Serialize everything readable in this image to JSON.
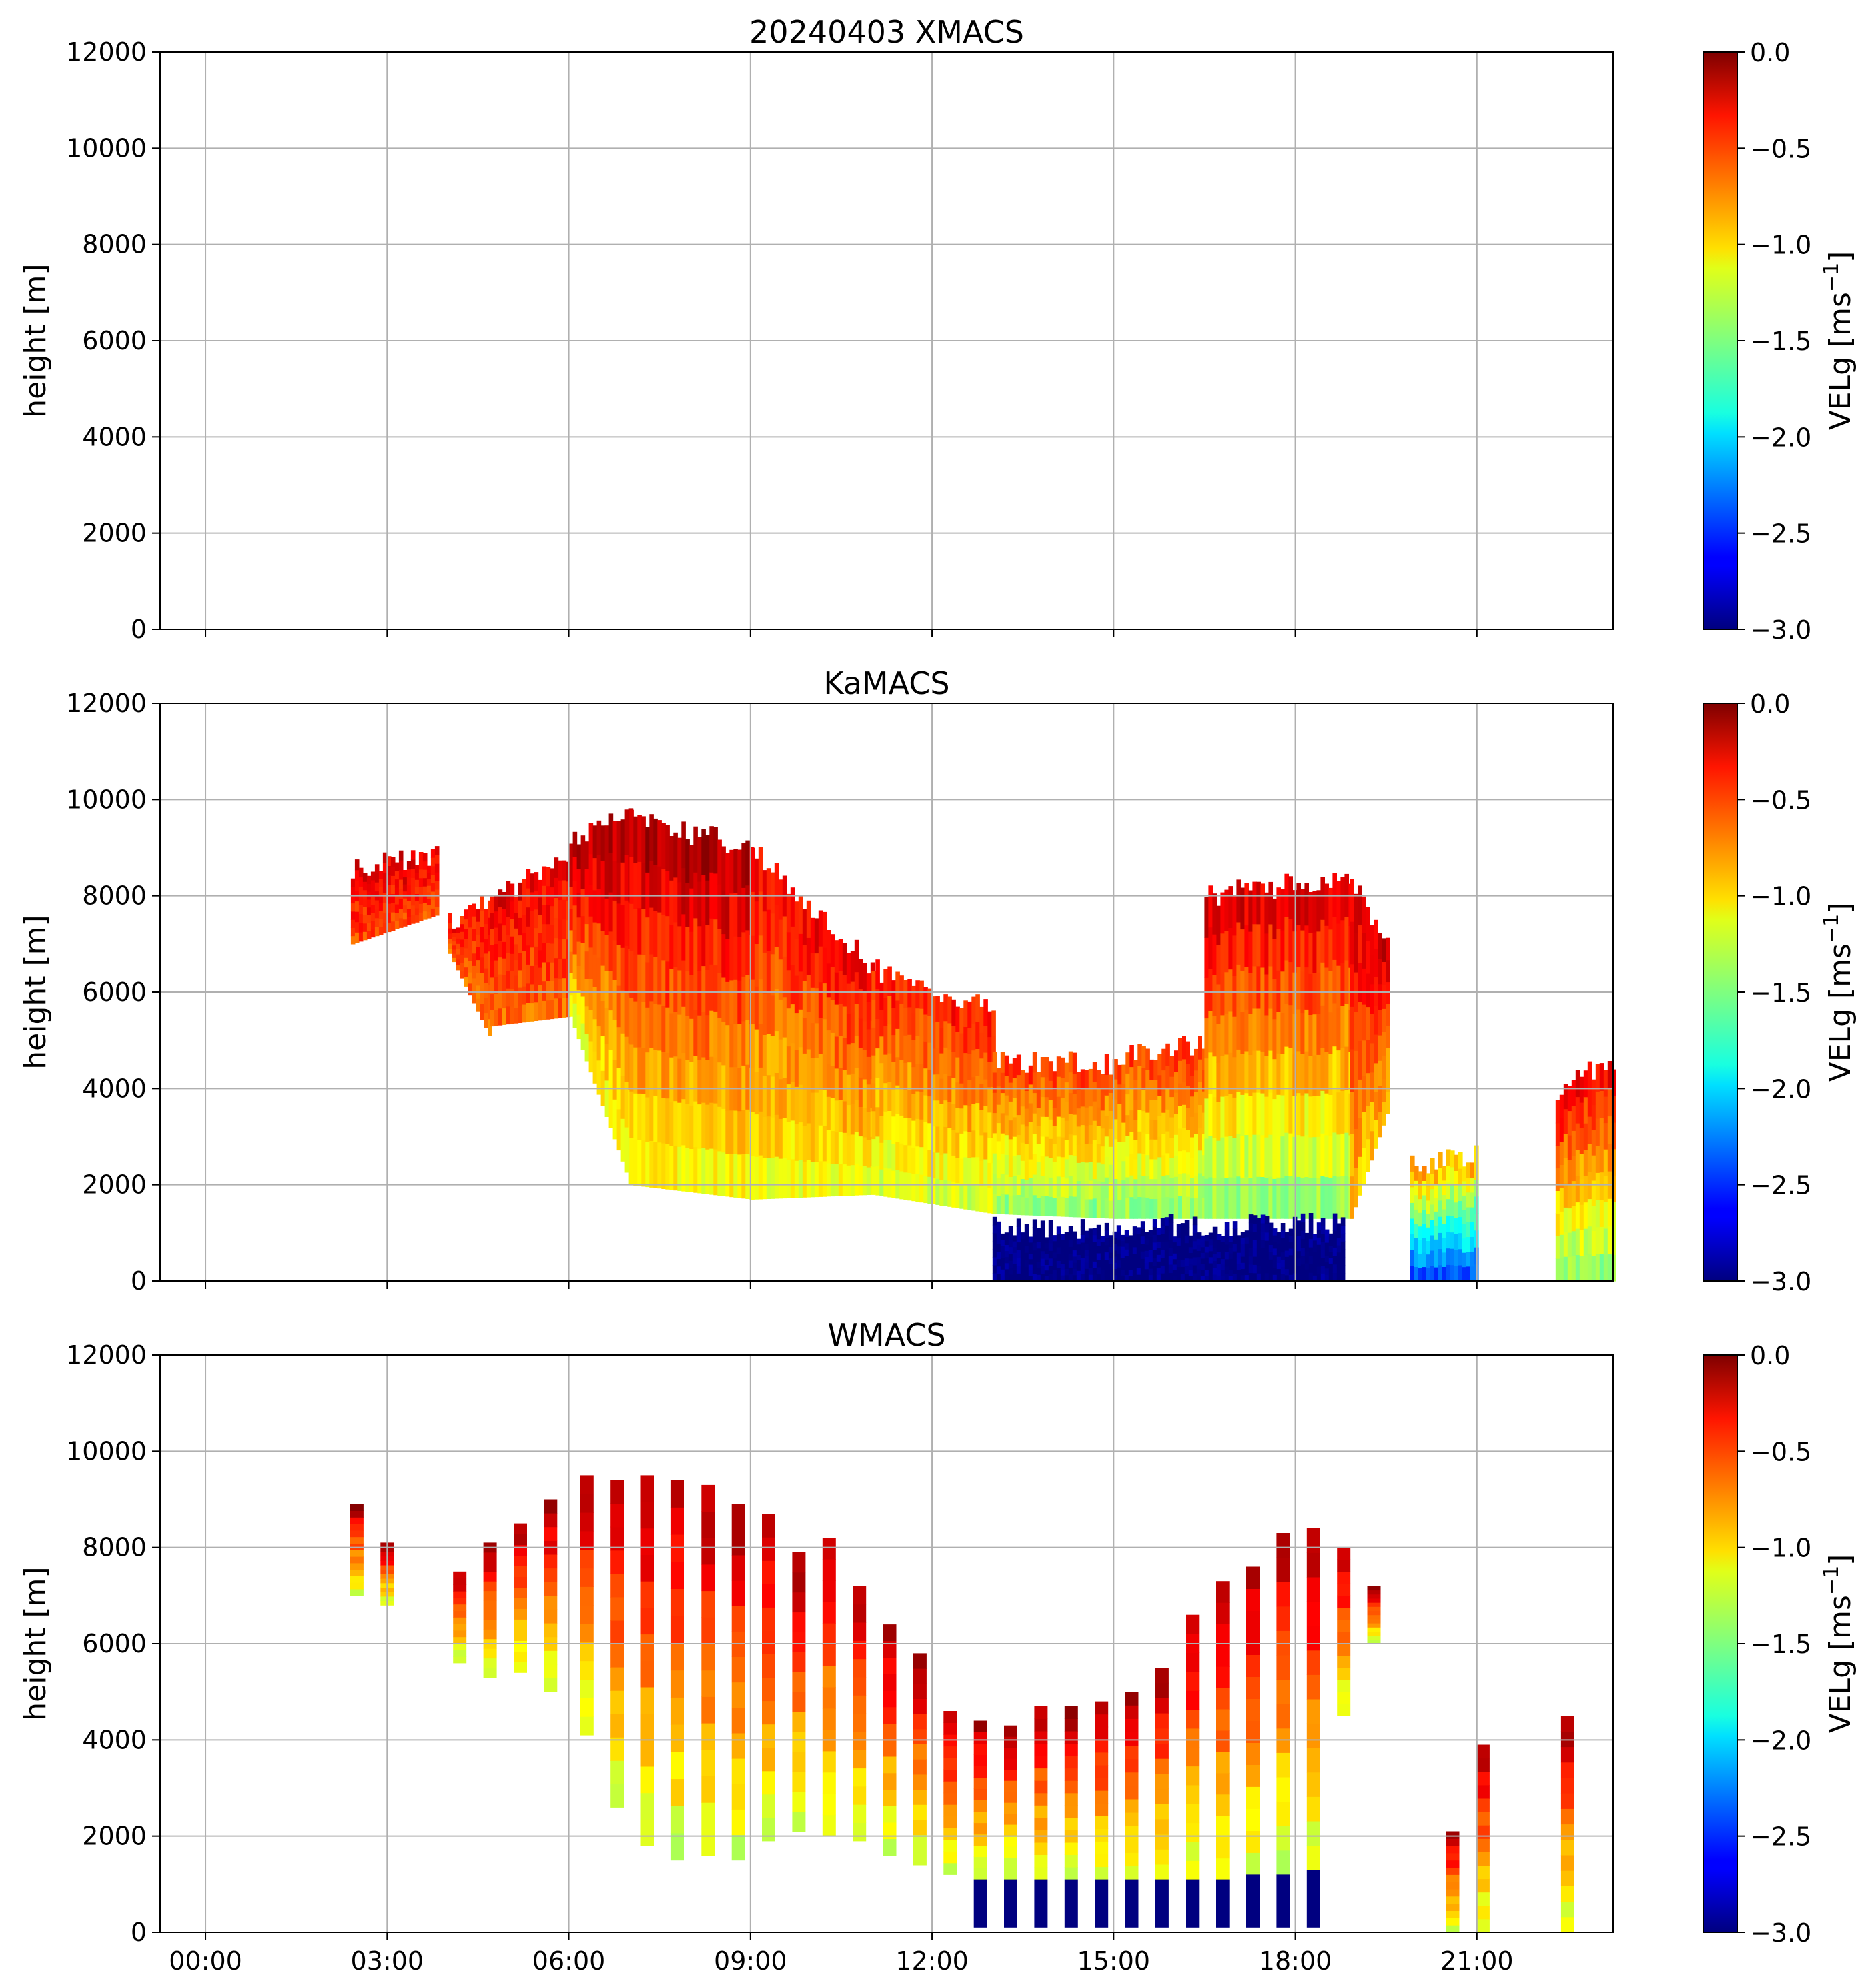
{
  "figure": {
    "panels": [
      {
        "title": "20240403 XMACS",
        "ylabel": "height [m]"
      },
      {
        "title": "KaMACS",
        "ylabel": "height [m]"
      },
      {
        "title": "WMACS",
        "ylabel": "height [m]"
      }
    ],
    "colorbar": {
      "label_main": "VELg [ms",
      "label_sup": "−1",
      "label_end": "]",
      "ticks": [
        "0.0",
        "−0.5",
        "−1.0",
        "−1.5",
        "−2.0",
        "−2.5",
        "−3.0"
      ],
      "range": [
        -3.0,
        0.0
      ],
      "colormap": "jet"
    }
  },
  "chart_data": [
    {
      "type": "heatmap",
      "title": "20240403 XMACS",
      "ylabel": "height [m]",
      "xlim_hours": [
        -0.75,
        23.25
      ],
      "ylim": [
        0,
        12000
      ],
      "yticks": [
        "0",
        "2000",
        "4000",
        "6000",
        "8000",
        "10000",
        "12000"
      ],
      "xticks": [],
      "grid": true,
      "regions": []
    },
    {
      "type": "heatmap",
      "title": "KaMACS",
      "ylabel": "height [m]",
      "xlim_hours": [
        -0.75,
        23.25
      ],
      "ylim": [
        0,
        12000
      ],
      "yticks": [
        "0",
        "2000",
        "4000",
        "6000",
        "8000",
        "10000",
        "12000"
      ],
      "xticks": [],
      "grid": true,
      "regions": [
        {
          "x": [
            2.4,
            3.8
          ],
          "bottom": [
            7000,
            7600
          ],
          "top": [
            8600,
            8900
          ],
          "vel_top": -0.3,
          "vel_bottom": -0.6
        },
        {
          "x": [
            4.0,
            4.7
          ],
          "bottom": [
            6800,
            5000
          ],
          "top": [
            7400,
            8000
          ],
          "vel_top": -0.4,
          "vel_bottom": -0.7
        },
        {
          "x": [
            4.7,
            6.0
          ],
          "bottom": [
            5300,
            5500
          ],
          "top": [
            8000,
            8700
          ],
          "vel_top": -0.3,
          "vel_bottom": -0.7
        },
        {
          "x": [
            6.0,
            7.0
          ],
          "bottom": [
            5500,
            2000
          ],
          "top": [
            9200,
            9600
          ],
          "vel_top": -0.1,
          "vel_bottom": -1.2
        },
        {
          "x": [
            7.0,
            9.0
          ],
          "bottom": [
            2000,
            1700
          ],
          "top": [
            9600,
            9000
          ],
          "vel_top": -0.1,
          "vel_bottom": -1.2
        },
        {
          "x": [
            9.0,
            11.0
          ],
          "bottom": [
            1700,
            1800
          ],
          "top": [
            9000,
            6500
          ],
          "vel_top": -0.3,
          "vel_bottom": -1.2
        },
        {
          "x": [
            11.0,
            13.0
          ],
          "bottom": [
            1800,
            1400
          ],
          "top": [
            6500,
            5600
          ],
          "vel_top": -0.4,
          "vel_bottom": -1.3
        },
        {
          "x": [
            13.0,
            15.0
          ],
          "bottom": [
            1400,
            1300
          ],
          "top": [
            4600,
            4500
          ],
          "vel_top": -0.5,
          "vel_bottom": -1.5
        },
        {
          "x": [
            15.0,
            16.5
          ],
          "bottom": [
            1300,
            1300
          ],
          "top": [
            4600,
            5000
          ],
          "vel_top": -0.5,
          "vel_bottom": -1.5
        },
        {
          "x": [
            16.5,
            18.9
          ],
          "bottom": [
            1300,
            1300
          ],
          "top": [
            8000,
            8400
          ],
          "vel_top": -0.2,
          "vel_bottom": -1.5
        },
        {
          "x": [
            18.9,
            19.5
          ],
          "bottom": [
            1300,
            3500
          ],
          "top": [
            8400,
            7000
          ],
          "vel_top": -0.2,
          "vel_bottom": -1.0
        },
        {
          "x": [
            13.0,
            18.8
          ],
          "bottom": [
            0,
            0
          ],
          "top": [
            1100,
            1200
          ],
          "vel_top": -3.0,
          "vel_bottom": -3.0
        },
        {
          "x": [
            19.9,
            21.0
          ],
          "bottom": [
            0,
            0
          ],
          "top": [
            2400,
            2600
          ],
          "vel_top": -0.8,
          "vel_bottom": -2.5
        },
        {
          "x": [
            22.3,
            23.25
          ],
          "bottom": [
            0,
            0
          ],
          "top": [
            4000,
            4600
          ],
          "vel_top": -0.3,
          "vel_bottom": -1.5
        }
      ]
    },
    {
      "type": "heatmap",
      "title": "WMACS",
      "ylabel": "height [m]",
      "xlim_hours": [
        -0.75,
        23.25
      ],
      "ylim": [
        0,
        12000
      ],
      "yticks": [
        "0",
        "2000",
        "4000",
        "6000",
        "8000",
        "10000",
        "12000"
      ],
      "xticks": [
        "00:00",
        "03:00",
        "06:00",
        "09:00",
        "12:00",
        "15:00",
        "18:00",
        "21:00"
      ],
      "xtick_hours": [
        0,
        3,
        6,
        9,
        12,
        15,
        18,
        21
      ],
      "grid": true,
      "profiles": [
        {
          "x": 2.5,
          "bottom": 7000,
          "top": 8900
        },
        {
          "x": 3.0,
          "bottom": 6800,
          "top": 8100
        },
        {
          "x": 4.2,
          "bottom": 5600,
          "top": 7500
        },
        {
          "x": 4.7,
          "bottom": 5300,
          "top": 8100
        },
        {
          "x": 5.2,
          "bottom": 5400,
          "top": 8500
        },
        {
          "x": 5.7,
          "bottom": 5000,
          "top": 9000
        },
        {
          "x": 6.3,
          "bottom": 4100,
          "top": 9500
        },
        {
          "x": 6.8,
          "bottom": 2600,
          "top": 9400
        },
        {
          "x": 7.3,
          "bottom": 1800,
          "top": 9500
        },
        {
          "x": 7.8,
          "bottom": 1500,
          "top": 9400
        },
        {
          "x": 8.3,
          "bottom": 1600,
          "top": 9300
        },
        {
          "x": 8.8,
          "bottom": 1500,
          "top": 8900
        },
        {
          "x": 9.3,
          "bottom": 1900,
          "top": 8700
        },
        {
          "x": 9.8,
          "bottom": 2100,
          "top": 7900
        },
        {
          "x": 10.3,
          "bottom": 2000,
          "top": 8200
        },
        {
          "x": 10.8,
          "bottom": 1900,
          "top": 7200
        },
        {
          "x": 11.3,
          "bottom": 1600,
          "top": 6400
        },
        {
          "x": 11.8,
          "bottom": 1400,
          "top": 5800
        },
        {
          "x": 12.3,
          "bottom": 1200,
          "top": 4600
        },
        {
          "x": 12.8,
          "bottom": 1100,
          "top": 4400
        },
        {
          "x": 13.3,
          "bottom": 1100,
          "top": 4300
        },
        {
          "x": 13.8,
          "bottom": 1100,
          "top": 4700
        },
        {
          "x": 14.3,
          "bottom": 1100,
          "top": 4700
        },
        {
          "x": 14.8,
          "bottom": 1100,
          "top": 4800
        },
        {
          "x": 15.3,
          "bottom": 1100,
          "top": 5000
        },
        {
          "x": 15.8,
          "bottom": 1100,
          "top": 5500
        },
        {
          "x": 16.3,
          "bottom": 1100,
          "top": 6600
        },
        {
          "x": 16.8,
          "bottom": 1100,
          "top": 7300
        },
        {
          "x": 17.3,
          "bottom": 1200,
          "top": 7600
        },
        {
          "x": 17.8,
          "bottom": 1200,
          "top": 8300
        },
        {
          "x": 18.3,
          "bottom": 1300,
          "top": 8400
        },
        {
          "x": 18.8,
          "bottom": 4500,
          "top": 8000
        },
        {
          "x": 19.3,
          "bottom": 6000,
          "top": 7200
        },
        {
          "x": 20.6,
          "bottom": 0,
          "top": 2100
        },
        {
          "x": 21.1,
          "bottom": 0,
          "top": 3900
        },
        {
          "x": 22.5,
          "bottom": 0,
          "top": 4500
        }
      ]
    }
  ]
}
